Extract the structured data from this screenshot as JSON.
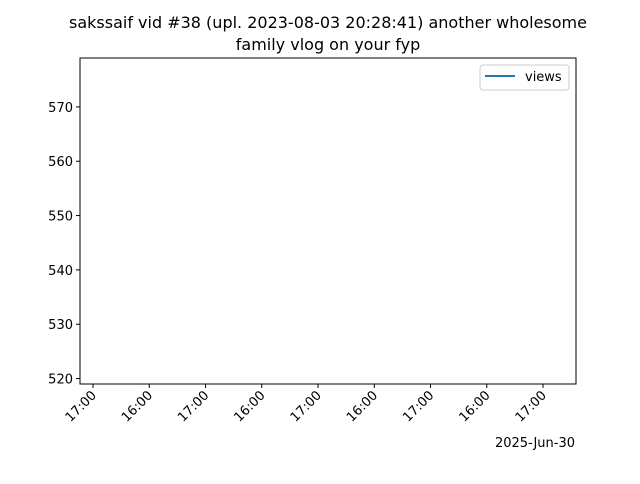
{
  "chart_data": {
    "type": "line",
    "title_line1": "sakssaif vid #38 (upl. 2023-08-03 20:28:41) another wholesome",
    "title_line2": "family vlog on your fyp",
    "xlabel": "",
    "ylabel": "",
    "ylim": [
      519,
      579
    ],
    "yticks": [
      520,
      530,
      540,
      550,
      560,
      570
    ],
    "xtick_labels": [
      "17:00",
      "16:00",
      "17:00",
      "16:00",
      "17:00",
      "16:00",
      "17:00",
      "16:00",
      "17:00"
    ],
    "x_offset_label": "2025-Jun-30",
    "series": [
      {
        "name": "views",
        "color": "#1f77b4",
        "x": [],
        "y": []
      }
    ],
    "legend": {
      "position": "top-right"
    },
    "grid": false
  }
}
